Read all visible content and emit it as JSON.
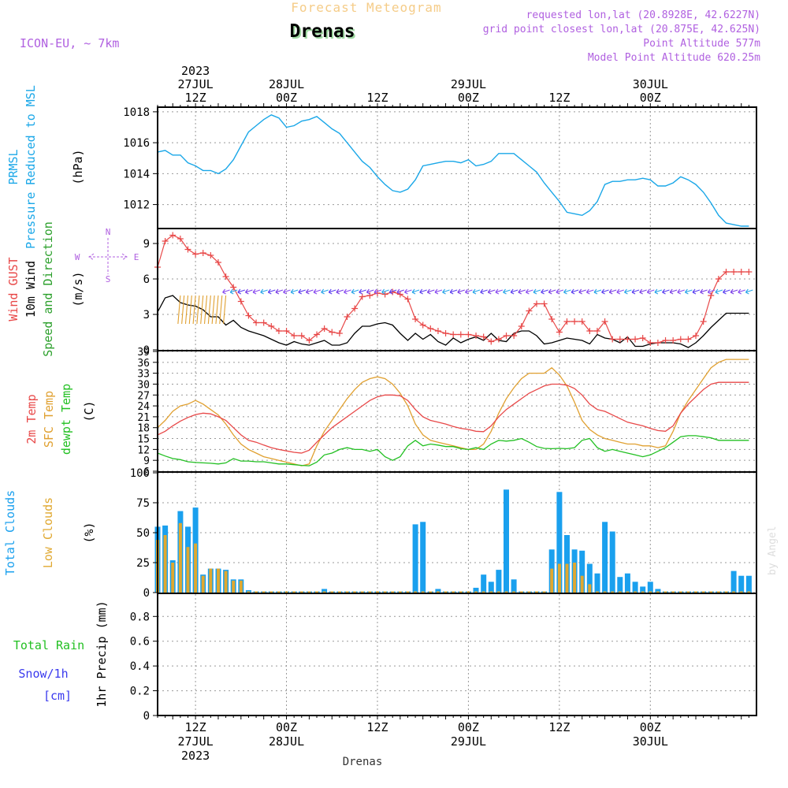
{
  "header": {
    "subtitle": "Forecast Meteogram",
    "station": "Drenas",
    "model": "ICON-EU, ~ 7km",
    "requested": "requested lon,lat (20.8928E, 42.6227N)",
    "grid": "grid point closest lon,lat (20.875E, 42.625N)",
    "point_alt": "Point Altitude 577m",
    "model_alt": "Model Point Altitude 620.25m",
    "watermark": "by Angel",
    "bottom_label": "Drenas"
  },
  "time_axis": {
    "start_hour": 22,
    "end_hour": 101,
    "top_ticks": [
      {
        "h": 27,
        "lines": [
          "2023",
          "27JUL",
          "12Z"
        ]
      },
      {
        "h": 39,
        "lines": [
          "28JUL",
          "00Z"
        ]
      },
      {
        "h": 51,
        "lines": [
          "12Z"
        ]
      },
      {
        "h": 63,
        "lines": [
          "29JUL",
          "00Z"
        ]
      },
      {
        "h": 75,
        "lines": [
          "12Z"
        ]
      },
      {
        "h": 87,
        "lines": [
          "30JUL",
          "00Z"
        ]
      }
    ],
    "bottom_ticks": [
      {
        "h": 27,
        "lines": [
          "12Z",
          "27JUL",
          "2023"
        ]
      },
      {
        "h": 39,
        "lines": [
          "00Z",
          "28JUL"
        ]
      },
      {
        "h": 51,
        "lines": [
          "12Z"
        ]
      },
      {
        "h": 63,
        "lines": [
          "00Z",
          "29JUL"
        ]
      },
      {
        "h": 75,
        "lines": [
          "12Z"
        ]
      },
      {
        "h": 87,
        "lines": [
          "00Z",
          "30JUL"
        ]
      }
    ]
  },
  "colors": {
    "pressure": "#1aa7e8",
    "gust": "#e84848",
    "wind": "#000000",
    "wind_dir_label": "#2ca02c",
    "temp2m": "#e84848",
    "sfc": "#e0a030",
    "dewpt": "#22c022",
    "total_cloud": "#1aa0ee",
    "low_cloud": "#e0a830",
    "rain": "#22c022",
    "snow": "#3a3aee",
    "header_purple": "#b060e0",
    "header_orange": "#f5cc88",
    "compass": "#b060e0"
  },
  "chart_data": [
    {
      "type": "line",
      "title": "PRMSL Pressure Reduced to MSL",
      "ylabel": "(hPa)",
      "ylabel_lines": [
        "PRMSL",
        "Pressure Reduced to MSL"
      ],
      "ylim": [
        1010.5,
        1018.3
      ],
      "yticks": [
        1012,
        1014,
        1016,
        1018
      ],
      "x": [
        22,
        23,
        24,
        25,
        26,
        27,
        28,
        29,
        30,
        31,
        32,
        33,
        34,
        35,
        36,
        37,
        38,
        39,
        40,
        41,
        42,
        43,
        44,
        45,
        46,
        47,
        48,
        49,
        50,
        51,
        52,
        53,
        54,
        55,
        56,
        57,
        58,
        59,
        60,
        61,
        62,
        63,
        64,
        65,
        66,
        67,
        68,
        69,
        70,
        71,
        72,
        73,
        74,
        75,
        76,
        77,
        78,
        79,
        80,
        81,
        82,
        83,
        84,
        85,
        86,
        87,
        88,
        89,
        90,
        91,
        92,
        93,
        94,
        95,
        96,
        97,
        98,
        99,
        100
      ],
      "series": [
        {
          "name": "PRMSL",
          "values": [
            1015.4,
            1015.5,
            1015.2,
            1015.2,
            1014.7,
            1014.5,
            1014.2,
            1014.2,
            1014.0,
            1014.3,
            1014.9,
            1015.8,
            1016.7,
            1017.1,
            1017.5,
            1017.8,
            1017.6,
            1017.0,
            1017.1,
            1017.4,
            1017.5,
            1017.7,
            1017.3,
            1016.9,
            1016.6,
            1016.0,
            1015.4,
            1014.8,
            1014.4,
            1013.8,
            1013.3,
            1012.9,
            1012.8,
            1013.0,
            1013.6,
            1014.5,
            1014.6,
            1014.7,
            1014.8,
            1014.8,
            1014.7,
            1014.9,
            1014.5,
            1014.6,
            1014.8,
            1015.3,
            1015.3,
            1015.3,
            1014.9,
            1014.5,
            1014.1,
            1013.4,
            1012.8,
            1012.2,
            1011.5,
            1011.4,
            1011.3,
            1011.6,
            1012.2,
            1013.3,
            1013.5,
            1013.5,
            1013.6,
            1013.6,
            1013.7,
            1013.6,
            1013.2,
            1013.2,
            1013.4,
            1013.8,
            1013.6,
            1013.3,
            1012.8,
            1012.1,
            1011.3,
            1010.8,
            1010.7,
            1010.6,
            1010.6
          ]
        }
      ]
    },
    {
      "type": "line",
      "title": "Wind GUST / 10m Wind Speed and Direction",
      "ylabel": "(m/s)",
      "ylabel_lines": [
        "Wind GUST",
        "10m Wind",
        "Speed and Direction"
      ],
      "ylim": [
        0,
        10.2
      ],
      "yticks": [
        0,
        3,
        6,
        9
      ],
      "x": [
        22,
        23,
        24,
        25,
        26,
        27,
        28,
        29,
        30,
        31,
        32,
        33,
        34,
        35,
        36,
        37,
        38,
        39,
        40,
        41,
        42,
        43,
        44,
        45,
        46,
        47,
        48,
        49,
        50,
        51,
        52,
        53,
        54,
        55,
        56,
        57,
        58,
        59,
        60,
        61,
        62,
        63,
        64,
        65,
        66,
        67,
        68,
        69,
        70,
        71,
        72,
        73,
        74,
        75,
        76,
        77,
        78,
        79,
        80,
        81,
        82,
        83,
        84,
        85,
        86,
        87,
        88,
        89,
        90,
        91,
        92,
        93,
        94,
        95,
        96,
        97,
        98,
        99,
        100
      ],
      "series": [
        {
          "name": "Wind GUST",
          "values": [
            7.0,
            9.2,
            9.7,
            9.4,
            8.5,
            8.1,
            8.2,
            8.0,
            7.4,
            6.2,
            5.3,
            4.1,
            2.9,
            2.3,
            2.3,
            2.0,
            1.6,
            1.6,
            1.2,
            1.2,
            0.8,
            1.3,
            1.8,
            1.5,
            1.4,
            2.8,
            3.5,
            4.5,
            4.6,
            4.8,
            4.7,
            4.9,
            4.7,
            4.3,
            2.6,
            2.1,
            1.8,
            1.6,
            1.4,
            1.3,
            1.3,
            1.3,
            1.2,
            1.1,
            0.7,
            0.9,
            1.2,
            1.2,
            2.0,
            3.3,
            3.9,
            3.9,
            2.6,
            1.5,
            2.4,
            2.4,
            2.4,
            1.6,
            1.6,
            2.4,
            0.9,
            0.9,
            0.9,
            0.9,
            1.0,
            0.6,
            0.6,
            0.8,
            0.8,
            0.9,
            0.9,
            1.2,
            2.4,
            4.6,
            6.0,
            6.6,
            6.6,
            6.6,
            6.6
          ]
        },
        {
          "name": "10m Wind",
          "values": [
            3.2,
            4.4,
            4.6,
            4.0,
            3.8,
            3.7,
            3.4,
            2.8,
            2.8,
            2.1,
            2.5,
            1.9,
            1.6,
            1.4,
            1.2,
            0.9,
            0.6,
            0.4,
            0.7,
            0.5,
            0.4,
            0.6,
            0.8,
            0.4,
            0.4,
            0.6,
            1.4,
            2.0,
            2.0,
            2.2,
            2.3,
            2.1,
            1.4,
            0.8,
            1.4,
            0.9,
            1.3,
            0.7,
            0.4,
            1.0,
            0.6,
            0.9,
            1.1,
            0.8,
            1.4,
            0.8,
            0.7,
            1.4,
            1.6,
            1.6,
            1.2,
            0.5,
            0.6,
            0.8,
            1.0,
            0.9,
            0.8,
            0.5,
            1.3,
            1.0,
            0.9,
            0.6,
            1.1,
            0.3,
            0.3,
            0.5,
            0.6,
            0.6,
            0.6,
            0.5,
            0.2,
            0.6,
            1.2,
            1.9,
            2.5,
            3.1,
            3.1,
            3.1,
            3.1
          ]
        }
      ],
      "wind_direction_glyphs": "arrows from purple/cyan barbs at ~5 m/s level, orange barbs morning of 27JUL",
      "compass": {
        "N": "N",
        "S": "S",
        "W": "W",
        "E": "E"
      }
    },
    {
      "type": "line",
      "title": "2m Temp / SFC Temp / dewpt Temp",
      "ylabel": "(C)",
      "ylabel_lines": [
        "2m Temp",
        "SFC Temp",
        "dewpt Temp"
      ],
      "ylim": [
        6,
        39
      ],
      "yticks": [
        6,
        9,
        12,
        15,
        18,
        21,
        24,
        27,
        30,
        33,
        36,
        39
      ],
      "x": [
        22,
        23,
        24,
        25,
        26,
        27,
        28,
        29,
        30,
        31,
        32,
        33,
        34,
        35,
        36,
        37,
        38,
        39,
        40,
        41,
        42,
        43,
        44,
        45,
        46,
        47,
        48,
        49,
        50,
        51,
        52,
        53,
        54,
        55,
        56,
        57,
        58,
        59,
        60,
        61,
        62,
        63,
        64,
        65,
        66,
        67,
        68,
        69,
        70,
        71,
        72,
        73,
        74,
        75,
        76,
        77,
        78,
        79,
        80,
        81,
        82,
        83,
        84,
        85,
        86,
        87,
        88,
        89,
        90,
        91,
        92,
        93,
        94,
        95,
        96,
        97,
        98,
        99,
        100
      ],
      "series": [
        {
          "name": "2m Temp",
          "values": [
            16,
            17,
            18.5,
            19.8,
            20.8,
            21.6,
            22,
            21.8,
            21,
            20,
            18,
            16,
            14.5,
            14,
            13.2,
            12.5,
            12,
            11.6,
            11.2,
            11,
            11.8,
            14,
            16,
            18,
            19.5,
            21,
            22.5,
            24,
            25.5,
            26.5,
            27,
            27,
            26.8,
            25.5,
            23,
            21,
            20,
            19.5,
            19,
            18.3,
            17.8,
            17.5,
            17,
            16.9,
            18.5,
            21,
            23,
            24.5,
            26,
            27.5,
            28.5,
            29.5,
            30,
            30,
            29.7,
            28.8,
            27,
            24.5,
            23,
            22.5,
            21.5,
            20.5,
            19.5,
            19,
            18.5,
            17.8,
            17.2,
            17,
            18.5,
            22,
            24.5,
            26.5,
            28.5,
            30,
            30.5,
            30.5,
            30.5,
            30.5,
            30.5
          ]
        },
        {
          "name": "SFC Temp",
          "values": [
            18,
            20,
            22.5,
            24,
            24.5,
            25.5,
            24.5,
            23,
            21.5,
            19,
            16,
            13.5,
            12,
            11,
            10,
            9.5,
            9,
            8.5,
            8,
            7.5,
            8,
            13,
            17,
            20,
            23,
            26,
            28.5,
            30.5,
            31.5,
            32,
            31.5,
            30,
            27.5,
            24,
            19,
            16,
            14.5,
            14,
            13.5,
            13,
            12.5,
            12,
            12,
            13.5,
            17,
            22,
            26,
            29,
            31.5,
            33,
            33,
            33,
            34.5,
            32.5,
            29.5,
            25,
            20,
            17.5,
            16,
            15,
            14.5,
            14,
            13.5,
            13.5,
            13,
            13,
            12.5,
            13,
            17,
            22,
            25.5,
            28.5,
            31.5,
            34.5,
            36,
            36.8,
            36.8,
            36.8,
            36.8
          ]
        },
        {
          "name": "dewpt Temp",
          "values": [
            11,
            10.2,
            9.5,
            9.2,
            8.6,
            8.4,
            8.3,
            8.2,
            8,
            8.3,
            9.5,
            8.8,
            8.8,
            8.6,
            8.6,
            8.3,
            8,
            8,
            7.8,
            7.6,
            7.5,
            8.5,
            10.5,
            11,
            12,
            12.5,
            12,
            12,
            11.5,
            12,
            10,
            9,
            10,
            13,
            14.5,
            13,
            13.5,
            13.2,
            12.8,
            12.8,
            12.2,
            12,
            12.5,
            12,
            13.5,
            14.5,
            14.3,
            14.5,
            15,
            14,
            12.8,
            12.3,
            12.2,
            12.3,
            12.2,
            12.5,
            14.5,
            15,
            12.5,
            11.5,
            12,
            11.5,
            11,
            10.5,
            10,
            10.5,
            11.5,
            12.5,
            14,
            15.5,
            15.8,
            15.8,
            15.5,
            15.2,
            14.5,
            14.5,
            14.5,
            14.5,
            14.5
          ]
        }
      ]
    },
    {
      "type": "bar",
      "title": "Total Clouds / Low Clouds",
      "ylabel": "(%)",
      "ylabel_lines": [
        "Total Clouds",
        "Low Clouds"
      ],
      "ylim": [
        0,
        100
      ],
      "yticks": [
        0,
        25,
        50,
        75,
        100
      ],
      "x": [
        22,
        23,
        24,
        25,
        26,
        27,
        28,
        29,
        30,
        31,
        32,
        33,
        34,
        35,
        36,
        37,
        38,
        39,
        40,
        41,
        42,
        43,
        44,
        45,
        46,
        47,
        48,
        49,
        50,
        51,
        52,
        53,
        54,
        55,
        56,
        57,
        58,
        59,
        60,
        61,
        62,
        63,
        64,
        65,
        66,
        67,
        68,
        69,
        70,
        71,
        72,
        73,
        74,
        75,
        76,
        77,
        78,
        79,
        80,
        81,
        82,
        83,
        84,
        85,
        86,
        87,
        88,
        89,
        90,
        91,
        92,
        93,
        94,
        95,
        96,
        97,
        98,
        99,
        100
      ],
      "series": [
        {
          "name": "Total Clouds",
          "values": [
            55,
            56,
            27,
            68,
            55,
            71,
            15,
            20,
            20,
            19,
            11,
            11,
            2,
            1,
            1,
            1,
            1,
            1,
            1,
            1,
            1,
            1,
            3,
            1,
            1,
            1,
            1,
            1,
            1,
            1,
            1,
            1,
            1,
            1,
            57,
            59,
            1,
            3,
            1,
            1,
            1,
            1,
            4,
            15,
            9,
            19,
            86,
            11,
            1,
            1,
            1,
            1,
            36,
            84,
            48,
            36,
            35,
            24,
            16,
            59,
            51,
            13,
            16,
            9,
            5,
            9,
            3,
            1,
            1,
            1,
            1,
            1,
            1,
            1,
            1,
            1,
            18,
            14,
            14
          ]
        },
        {
          "name": "Low Clouds",
          "values": [
            44,
            48,
            25,
            58,
            38,
            41,
            14,
            20,
            20,
            18,
            10,
            10,
            1,
            1,
            1,
            1,
            1,
            1,
            1,
            1,
            1,
            1,
            1,
            1,
            1,
            1,
            1,
            1,
            1,
            1,
            1,
            1,
            1,
            1,
            1,
            1,
            1,
            1,
            1,
            1,
            1,
            1,
            1,
            1,
            1,
            1,
            1,
            1,
            1,
            1,
            1,
            1,
            20,
            24,
            24,
            25,
            14,
            7,
            1,
            1,
            1,
            1,
            1,
            1,
            1,
            1,
            1,
            1,
            1,
            1,
            1,
            1,
            1,
            1,
            1,
            1,
            1,
            1,
            1
          ]
        }
      ]
    },
    {
      "type": "bar",
      "title": "Total Rain / Snow/1h [cm]",
      "ylabel": "1hr Precip (mm)",
      "ylabel_lines": [
        "Total  Rain",
        "Snow/1h",
        "[cm]"
      ],
      "ylim": [
        0,
        0.98
      ],
      "yticks": [
        0,
        0.2,
        0.4,
        0.6,
        0.8
      ],
      "ytick_labels": [
        "0",
        "0.2",
        "0.4",
        "0.6",
        "0.8"
      ],
      "series": [
        {
          "name": "Total Rain",
          "values": []
        }
      ]
    }
  ]
}
